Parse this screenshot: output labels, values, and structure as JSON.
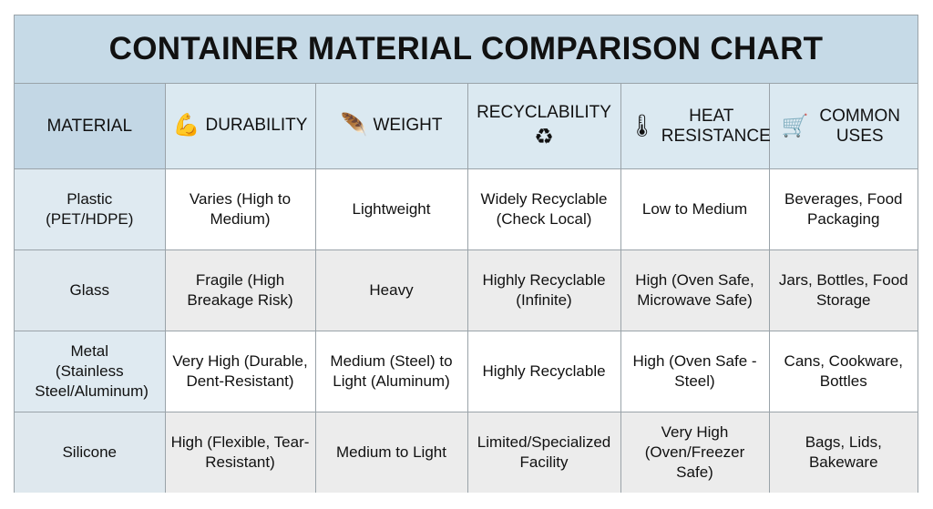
{
  "title": "CONTAINER MATERIAL COMPARISON CHART",
  "headers": [
    {
      "label": "MATERIAL",
      "icon": ""
    },
    {
      "label": "DURABILITY",
      "icon": "flexed-bicep-icon"
    },
    {
      "label": "WEIGHT",
      "icon": "feather-icon"
    },
    {
      "label": "RECYCLABILITY",
      "icon": "recycle-icon"
    },
    {
      "label": "HEAT RESISTANCE",
      "icon": "thermometer-flame-icon"
    },
    {
      "label": "COMMON USES",
      "icon": "shopping-cart-icon"
    }
  ],
  "rows": [
    [
      "Plastic (PET/HDPE)",
      "Varies (High to Medium)",
      "Lightweight",
      "Widely Recyclable (Check Local)",
      "Low to Medium",
      "Beverages, Food Packaging"
    ],
    [
      "Glass",
      "Fragile (High Breakage Risk)",
      "Heavy",
      "Highly Recyclable (Infinite)",
      "High (Oven Safe, Microwave Safe)",
      "Jars, Bottles, Food Storage"
    ],
    [
      "Metal (Stainless Steel/Aluminum)",
      "Very High (Durable, Dent-Resistant)",
      "Medium (Steel) to Light (Aluminum)",
      "Highly Recyclable",
      "High (Oven Safe - Steel)",
      "Cans, Cookware, Bottles"
    ],
    [
      "Silicone",
      "High (Flexible, Tear-Resistant)",
      "Medium to Light",
      "Limited/Specialized Facility",
      "Very High (Oven/Freezer Safe)",
      "Bags, Lids, Bakeware"
    ]
  ],
  "colors": {
    "title_bg": "#c6dae7",
    "header_bg": "#dbe9f1",
    "alt_row_bg": "#ececec",
    "border": "#9aa3a9"
  }
}
